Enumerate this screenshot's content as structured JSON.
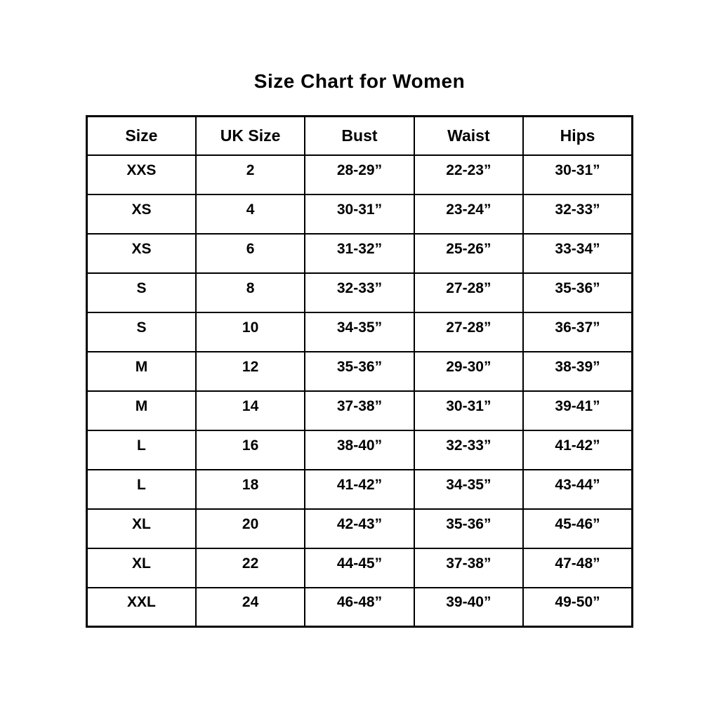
{
  "page": {
    "title": "Size Chart for Women"
  },
  "table": {
    "headers": [
      "Size",
      "UK Size",
      "Bust",
      "Waist",
      "Hips"
    ],
    "rows": [
      [
        "XXS",
        "2",
        "28-29”",
        "22-23”",
        "30-31”"
      ],
      [
        "XS",
        "4",
        "30-31”",
        "23-24”",
        "32-33”"
      ],
      [
        "XS",
        "6",
        "31-32”",
        "25-26”",
        "33-34”"
      ],
      [
        "S",
        "8",
        "32-33”",
        "27-28”",
        "35-36”"
      ],
      [
        "S",
        "10",
        "34-35”",
        "27-28”",
        "36-37”"
      ],
      [
        "M",
        "12",
        "35-36”",
        "29-30”",
        "38-39”"
      ],
      [
        "M",
        "14",
        "37-38”",
        "30-31”",
        "39-41”"
      ],
      [
        "L",
        "16",
        "38-40”",
        "32-33”",
        "41-42”"
      ],
      [
        "L",
        "18",
        "41-42”",
        "34-35”",
        "43-44”"
      ],
      [
        "XL",
        "20",
        "42-43”",
        "35-36”",
        "45-46”"
      ],
      [
        "XL",
        "22",
        "44-45”",
        "37-38”",
        "47-48”"
      ],
      [
        "XXL",
        "24",
        "46-48”",
        "39-40”",
        "49-50”"
      ]
    ]
  },
  "colors": {
    "background": "#ffffff",
    "text": "#000000",
    "border": "#000000"
  },
  "chart_data": {
    "type": "table",
    "title": "Size Chart for Women",
    "columns": [
      "Size",
      "UK Size",
      "Bust",
      "Waist",
      "Hips"
    ],
    "rows": [
      {
        "size": "XXS",
        "uk_size": 2,
        "bust": "28-29”",
        "waist": "22-23”",
        "hips": "30-31”"
      },
      {
        "size": "XS",
        "uk_size": 4,
        "bust": "30-31”",
        "waist": "23-24”",
        "hips": "32-33”"
      },
      {
        "size": "XS",
        "uk_size": 6,
        "bust": "31-32”",
        "waist": "25-26”",
        "hips": "33-34”"
      },
      {
        "size": "S",
        "uk_size": 8,
        "bust": "32-33”",
        "waist": "27-28”",
        "hips": "35-36”"
      },
      {
        "size": "S",
        "uk_size": 10,
        "bust": "34-35”",
        "waist": "27-28”",
        "hips": "36-37”"
      },
      {
        "size": "M",
        "uk_size": 12,
        "bust": "35-36”",
        "waist": "29-30”",
        "hips": "38-39”"
      },
      {
        "size": "M",
        "uk_size": 14,
        "bust": "37-38”",
        "waist": "30-31”",
        "hips": "39-41”"
      },
      {
        "size": "L",
        "uk_size": 16,
        "bust": "38-40”",
        "waist": "32-33”",
        "hips": "41-42”"
      },
      {
        "size": "L",
        "uk_size": 18,
        "bust": "41-42”",
        "waist": "34-35”",
        "hips": "43-44”"
      },
      {
        "size": "XL",
        "uk_size": 20,
        "bust": "42-43”",
        "waist": "35-36”",
        "hips": "45-46”"
      },
      {
        "size": "XL",
        "uk_size": 22,
        "bust": "44-45”",
        "waist": "37-38”",
        "hips": "47-48”"
      },
      {
        "size": "XXL",
        "uk_size": 24,
        "bust": "46-48”",
        "waist": "39-40”",
        "hips": "49-50”"
      }
    ]
  }
}
